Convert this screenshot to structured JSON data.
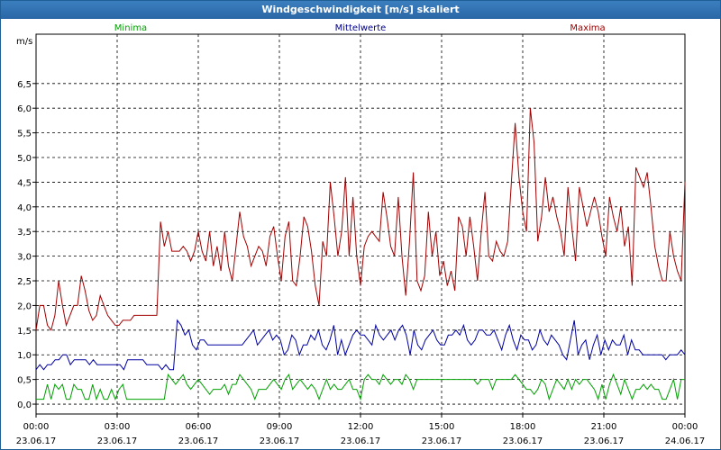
{
  "window": {
    "title": "Windgeschwindigkeit [m/s] skaliert"
  },
  "chart_data": {
    "type": "line",
    "title": "Windgeschwindigkeit [m/s] skaliert",
    "ylabel": "m/s",
    "ylim": [
      -0.2,
      7.5
    ],
    "xlim": [
      0,
      24
    ],
    "grid": true,
    "y_ticks": [
      "0,0",
      "0,5",
      "1,0",
      "1,5",
      "2,0",
      "2,5",
      "3,0",
      "3,5",
      "4,0",
      "4,5",
      "5,0",
      "5,5",
      "6,0",
      "6,5"
    ],
    "y_tick_values": [
      0,
      0.5,
      1,
      1.5,
      2,
      2.5,
      3,
      3.5,
      4,
      4.5,
      5,
      5.5,
      6,
      6.5
    ],
    "x_ticks": [
      {
        "time": "00:00",
        "date": "23.06.17"
      },
      {
        "time": "03:00",
        "date": "23.06.17"
      },
      {
        "time": "06:00",
        "date": "23.06.17"
      },
      {
        "time": "09:00",
        "date": "23.06.17"
      },
      {
        "time": "12:00",
        "date": "23.06.17"
      },
      {
        "time": "15:00",
        "date": "23.06.17"
      },
      {
        "time": "18:00",
        "date": "23.06.17"
      },
      {
        "time": "21:00",
        "date": "23.06.17"
      },
      {
        "time": "00:00",
        "date": "24.06.17"
      }
    ],
    "legend": [
      "Minima",
      "Mittelwerte",
      "Maxima"
    ],
    "series": [
      {
        "name": "Minima",
        "color": "#00a000",
        "values": [
          0.1,
          0.1,
          0.1,
          0.4,
          0.1,
          0.4,
          0.3,
          0.4,
          0.1,
          0.1,
          0.4,
          0.3,
          0.3,
          0.1,
          0.1,
          0.4,
          0.1,
          0.3,
          0.1,
          0.1,
          0.3,
          0.1,
          0.3,
          0.4,
          0.1,
          0.1,
          0.1,
          0.1,
          0.1,
          0.1,
          0.1,
          0.1,
          0.1,
          0.1,
          0.1,
          0.6,
          0.5,
          0.4,
          0.5,
          0.6,
          0.4,
          0.3,
          0.4,
          0.5,
          0.4,
          0.3,
          0.2,
          0.3,
          0.3,
          0.3,
          0.4,
          0.2,
          0.4,
          0.4,
          0.6,
          0.5,
          0.4,
          0.3,
          0.1,
          0.3,
          0.3,
          0.3,
          0.4,
          0.5,
          0.4,
          0.3,
          0.5,
          0.6,
          0.3,
          0.4,
          0.5,
          0.4,
          0.3,
          0.4,
          0.3,
          0.1,
          0.3,
          0.5,
          0.3,
          0.4,
          0.3,
          0.3,
          0.4,
          0.5,
          0.3,
          0.3,
          0.1,
          0.5,
          0.6,
          0.5,
          0.5,
          0.4,
          0.6,
          0.5,
          0.4,
          0.5,
          0.5,
          0.4,
          0.6,
          0.5,
          0.3,
          0.5,
          0.5,
          0.5,
          0.5,
          0.5,
          0.5,
          0.5,
          0.5,
          0.5,
          0.5,
          0.5,
          0.5,
          0.5,
          0.5,
          0.5,
          0.5,
          0.4,
          0.5,
          0.5,
          0.5,
          0.3,
          0.5,
          0.5,
          0.5,
          0.5,
          0.5,
          0.6,
          0.5,
          0.4,
          0.3,
          0.3,
          0.2,
          0.3,
          0.5,
          0.4,
          0.1,
          0.3,
          0.5,
          0.4,
          0.3,
          0.5,
          0.3,
          0.5,
          0.4,
          0.5,
          0.5,
          0.4,
          0.3,
          0.1,
          0.4,
          0.1,
          0.4,
          0.6,
          0.4,
          0.2,
          0.5,
          0.3,
          0.1,
          0.3,
          0.3,
          0.4,
          0.3,
          0.4,
          0.3,
          0.3,
          0.1,
          0.1,
          0.3,
          0.5,
          0.1,
          0.5,
          0.5
        ]
      },
      {
        "name": "Mittelwerte",
        "color": "#0000a0",
        "values": [
          0.7,
          0.8,
          0.7,
          0.8,
          0.8,
          0.9,
          0.9,
          1.0,
          1.0,
          0.8,
          0.9,
          0.9,
          0.9,
          0.9,
          0.8,
          0.9,
          0.8,
          0.8,
          0.8,
          0.8,
          0.8,
          0.8,
          0.8,
          0.7,
          0.9,
          0.9,
          0.9,
          0.9,
          0.9,
          0.8,
          0.8,
          0.8,
          0.8,
          0.7,
          0.8,
          0.7,
          0.7,
          1.7,
          1.6,
          1.4,
          1.5,
          1.2,
          1.1,
          1.3,
          1.3,
          1.2,
          1.2,
          1.2,
          1.2,
          1.2,
          1.2,
          1.2,
          1.2,
          1.2,
          1.2,
          1.3,
          1.4,
          1.5,
          1.2,
          1.3,
          1.4,
          1.5,
          1.3,
          1.4,
          1.3,
          1.0,
          1.1,
          1.4,
          1.3,
          1.0,
          1.2,
          1.2,
          1.4,
          1.3,
          1.5,
          1.2,
          1.1,
          1.3,
          1.6,
          1.0,
          1.3,
          1.0,
          1.2,
          1.4,
          1.5,
          1.4,
          1.4,
          1.3,
          1.2,
          1.6,
          1.4,
          1.3,
          1.4,
          1.5,
          1.3,
          1.5,
          1.6,
          1.4,
          1.0,
          1.5,
          1.2,
          1.1,
          1.3,
          1.4,
          1.5,
          1.3,
          1.2,
          1.2,
          1.4,
          1.4,
          1.5,
          1.4,
          1.6,
          1.3,
          1.2,
          1.3,
          1.5,
          1.5,
          1.4,
          1.4,
          1.5,
          1.3,
          1.1,
          1.4,
          1.6,
          1.3,
          1.1,
          1.4,
          1.3,
          1.3,
          1.1,
          1.2,
          1.5,
          1.3,
          1.2,
          1.4,
          1.3,
          1.2,
          1.0,
          0.9,
          1.3,
          1.7,
          1.0,
          1.2,
          1.3,
          0.9,
          1.2,
          1.4,
          1.0,
          1.3,
          1.1,
          1.3,
          1.2,
          1.2,
          1.4,
          1.0,
          1.3,
          1.1,
          1.1,
          1.0,
          1.0,
          1.0,
          1.0,
          1.0,
          1.0,
          0.9,
          1.0,
          1.0,
          1.0,
          1.1,
          1.0
        ]
      },
      {
        "name": "Maxima",
        "color": "#a00000",
        "values": [
          1.5,
          2.0,
          2.0,
          1.6,
          1.5,
          1.8,
          2.5,
          2.0,
          1.6,
          1.8,
          2.0,
          2.0,
          2.6,
          2.3,
          1.9,
          1.7,
          1.8,
          2.2,
          2.0,
          1.8,
          1.7,
          1.6,
          1.6,
          1.7,
          1.7,
          1.7,
          1.8,
          1.8,
          1.8,
          1.8,
          1.8,
          1.8,
          1.8,
          3.7,
          3.2,
          3.5,
          3.1,
          3.1,
          3.1,
          3.2,
          3.1,
          2.9,
          3.1,
          3.5,
          3.1,
          2.9,
          3.5,
          2.8,
          3.2,
          2.7,
          3.5,
          2.8,
          2.5,
          3.2,
          3.9,
          3.4,
          3.2,
          2.8,
          3.0,
          3.2,
          3.1,
          2.8,
          3.4,
          3.6,
          3.0,
          2.5,
          3.4,
          3.7,
          2.5,
          2.4,
          3.0,
          3.8,
          3.6,
          3.1,
          2.4,
          2.0,
          3.3,
          3.0,
          4.5,
          3.8,
          3.0,
          3.5,
          4.6,
          3.0,
          4.2,
          3.0,
          2.4,
          3.2,
          3.4,
          3.5,
          3.4,
          3.3,
          4.3,
          3.8,
          3.2,
          3.0,
          4.2,
          3.0,
          2.2,
          3.3,
          4.7,
          2.5,
          2.3,
          2.6,
          3.9,
          3.0,
          3.5,
          2.6,
          2.9,
          2.4,
          2.7,
          2.3,
          3.8,
          3.6,
          3.0,
          3.8,
          3.2,
          2.5,
          3.5,
          4.3,
          3.0,
          2.9,
          3.3,
          3.1,
          3.0,
          3.3,
          4.5,
          5.7,
          4.6,
          3.9,
          3.5,
          6.0,
          5.3,
          3.3,
          3.8,
          4.6,
          3.9,
          4.2,
          3.8,
          3.5,
          3.0,
          4.4,
          3.6,
          2.9,
          4.4,
          4.0,
          3.6,
          3.9,
          4.2,
          3.9,
          3.4,
          3.0,
          4.2,
          3.8,
          3.5,
          4.0,
          3.2,
          3.6,
          2.4,
          4.8,
          4.6,
          4.4,
          4.7,
          4.0,
          3.2,
          2.8,
          2.5,
          2.5,
          3.5,
          3.0,
          2.7,
          2.5,
          4.5
        ]
      }
    ]
  }
}
